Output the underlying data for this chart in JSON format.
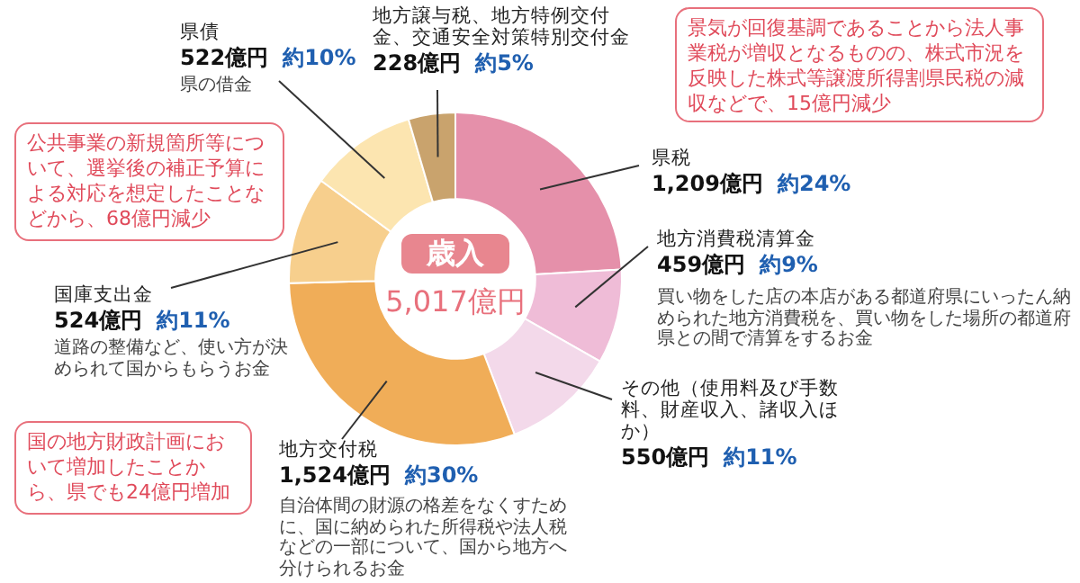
{
  "chart_data": {
    "type": "donut",
    "title": "歳入",
    "subtitle": "5,017億円",
    "categories": [
      "県税",
      "地方消費税清算金",
      "その他（使用料及び手数料、財産収入、諸収入ほか）",
      "地方交付税",
      "国庫支出金",
      "県債",
      "地方譲与税、地方特例交付金、交通安全対策特別交付金"
    ],
    "values": [
      1209,
      459,
      550,
      1524,
      524,
      522,
      228
    ],
    "colors": [
      "#e590aa",
      "#efbcd7",
      "#f3d9ea",
      "#f0ad58",
      "#f7cf8d",
      "#fce5b0",
      "#c9a36d"
    ],
    "value_labels": [
      "1,209億円 約24%",
      "459億円 約9%",
      "550億円 約11%",
      "1,524億円 約30%",
      "524億円 約11%",
      "522億円 約10%",
      "228億円 約5%"
    ],
    "annotations": [
      "買い物をした店の本店がある都道府県にいったん納められた地方消費税を、買い物をした場所の都道府県との間で清算をするお金",
      "自治体間の財源の格差をなくすために、国に納められた所得税や法人税などの一部について、国から地方へ分けられるお金",
      "道路の整備など、使い方が決められて国からもらうお金",
      "県の借金",
      "景気が回復基調であることから法人事業税が増収となるものの、株式市況を反映した株式等譲渡所得割県民税の減収などで、15億円減少",
      "公共事業の新規箇所等について、選挙後の補正予算による対応を想定したことなどから、68億円減少",
      "国の地方財政計画において増加したことから、県でも24億円増加"
    ]
  }
}
